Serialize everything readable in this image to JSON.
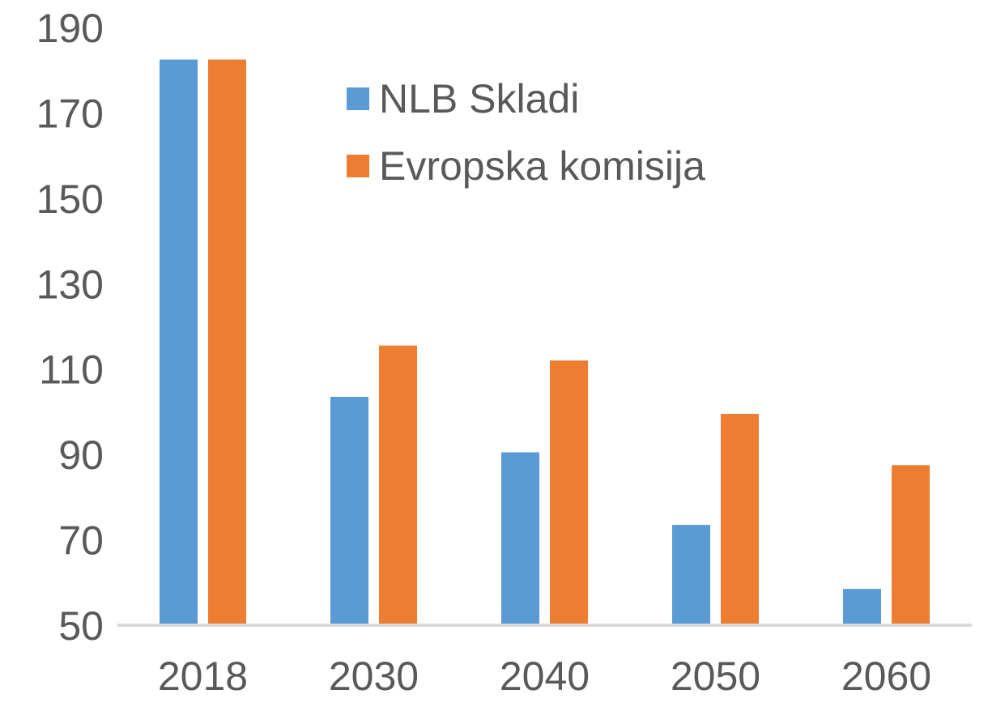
{
  "chart_data": {
    "type": "bar",
    "title": "",
    "xlabel": "",
    "ylabel": "",
    "categories": [
      "2018",
      "2030",
      "2040",
      "2050",
      "2060"
    ],
    "series": [
      {
        "name": "NLB Skladi",
        "color": "#5b9bd5",
        "values": [
          182.5,
          103.5,
          90.5,
          73.5,
          58.5
        ]
      },
      {
        "name": "Evropska komisija",
        "color": "#ed7d31",
        "values": [
          182.5,
          115.5,
          112.0,
          99.5,
          87.5
        ]
      }
    ],
    "ylim": [
      50,
      190
    ],
    "yticks": [
      "50",
      "70",
      "90",
      "110",
      "130",
      "150",
      "170",
      "190"
    ],
    "grid": false,
    "legend_position": "top-center"
  }
}
